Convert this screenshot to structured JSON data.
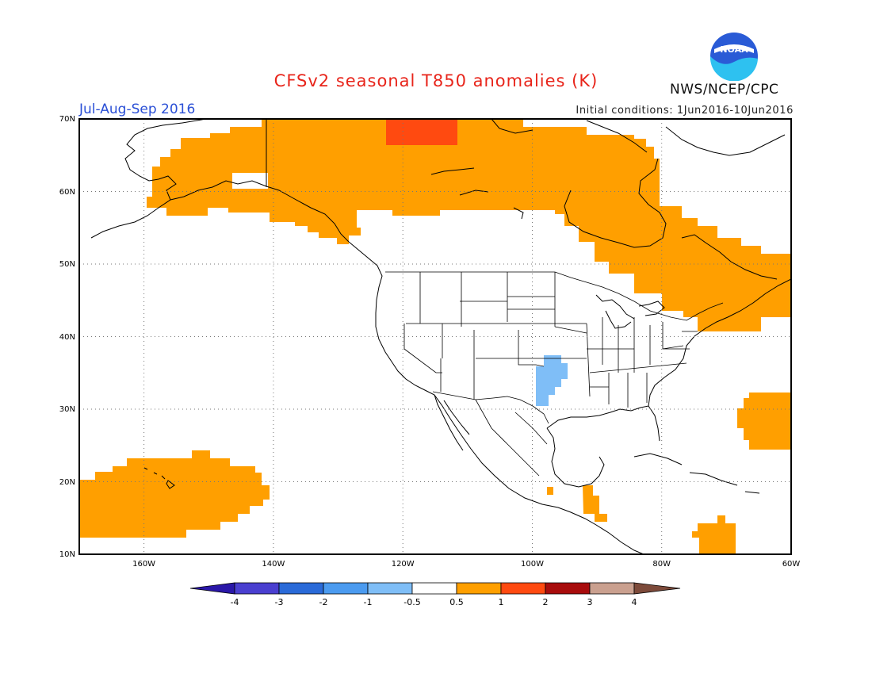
{
  "header": {
    "title": "CFSv2 seasonal T850 anomalies (K)",
    "agency": "NWS/NCEP/CPC",
    "logo_text": "NOAA",
    "season": "Jul-Aug-Sep 2016",
    "initial_conditions": "Initial conditions: 1Jun2016-10Jun2016"
  },
  "map": {
    "lat_labels": [
      "70N",
      "60N",
      "50N",
      "40N",
      "30N",
      "20N",
      "10N"
    ],
    "lon_labels": [
      "160W",
      "140W",
      "120W",
      "100W",
      "80W",
      "60W"
    ],
    "extent": {
      "lon_min": -171,
      "lon_max": -61,
      "lat_min": 10,
      "lat_max": 70
    }
  },
  "legend": {
    "tick_labels": [
      "-4",
      "-3",
      "-2",
      "-1",
      "-0.5",
      "0.5",
      "1",
      "2",
      "3",
      "4"
    ],
    "colors": [
      "#2a17a8",
      "#4a3fd0",
      "#2a6ad8",
      "#4b9bf0",
      "#7fbef7",
      "#ffffff",
      "#ff9f00",
      "#ff4a10",
      "#a80c0c",
      "#caa08f",
      "#7d4a3a",
      "#4a0fa0"
    ]
  },
  "colors": {
    "warm_anomaly": "#ff9f00",
    "strong_warm_anomaly": "#ff4a10",
    "cool_anomaly": "#7fbef7",
    "title": "#e8251b",
    "season": "#2a4fd6"
  }
}
